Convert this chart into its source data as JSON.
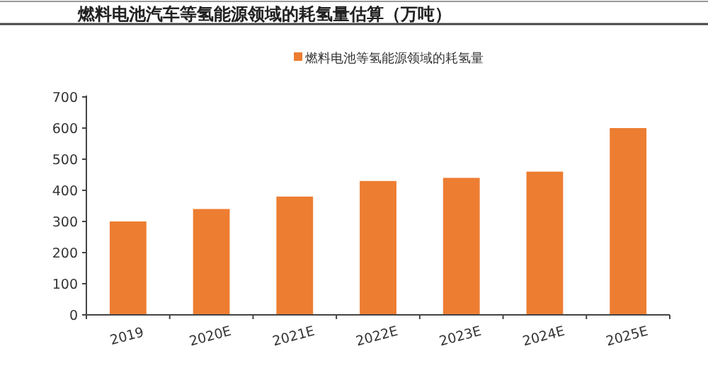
{
  "chart_data": {
    "type": "bar",
    "title": "燃料电池汽车等氢能源领域的耗氢量估算（万吨）",
    "categories": [
      "2019",
      "2020E",
      "2021E",
      "2022E",
      "2023E",
      "2024E",
      "2025E"
    ],
    "series": [
      {
        "name": "燃料电池等氢能源领域的耗氢量",
        "color": "#ed7d31",
        "values": [
          300,
          340,
          380,
          430,
          440,
          460,
          600
        ]
      }
    ],
    "ylim": [
      0,
      700
    ],
    "yticks": [
      0,
      100,
      200,
      300,
      400,
      500,
      600,
      700
    ],
    "legend": "top",
    "grid": false
  }
}
